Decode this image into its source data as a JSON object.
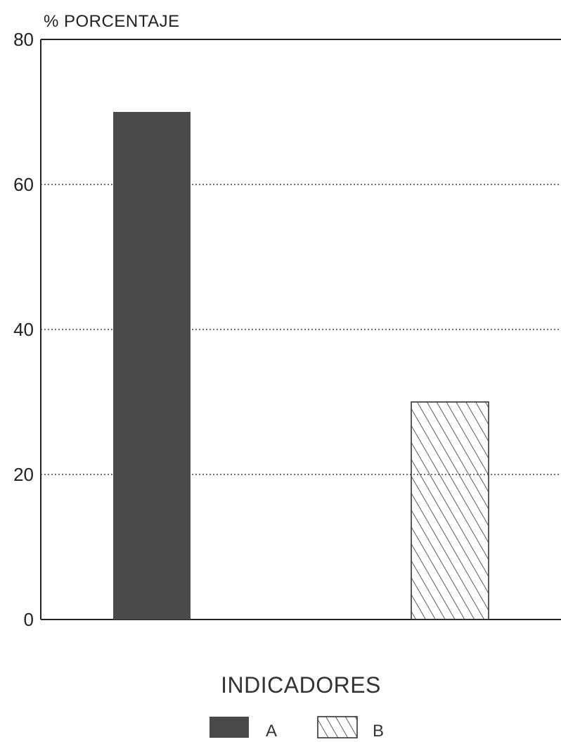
{
  "chart_data": {
    "type": "bar",
    "categories": [
      "A",
      "B"
    ],
    "values": [
      70,
      30
    ],
    "ylabel": "% PORCENTAJE",
    "xlabel": "INDICADORES",
    "ylim": [
      0,
      80
    ],
    "yticks": [
      "0",
      "20",
      "40",
      "60",
      "80"
    ],
    "grid": "horizontal dotted",
    "legend": {
      "placement": "bottom-center",
      "entries": [
        {
          "label": "A",
          "fill": "solid"
        },
        {
          "label": "B",
          "fill": "hatched"
        }
      ]
    },
    "colors": {
      "bar_a": "#4a4a4a",
      "bar_b_hatch": "#333333",
      "axis": "#222222"
    }
  }
}
